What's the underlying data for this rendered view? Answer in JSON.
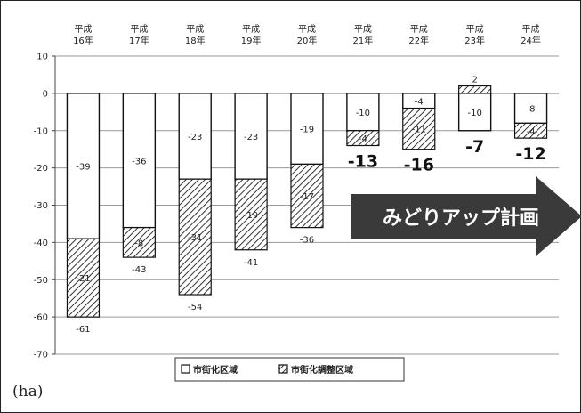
{
  "chart_data": {
    "type": "bar",
    "stacked": true,
    "categories": [
      [
        "平成",
        "16年"
      ],
      [
        "平成",
        "17年"
      ],
      [
        "平成",
        "18年"
      ],
      [
        "平成",
        "19年"
      ],
      [
        "平成",
        "20年"
      ],
      [
        "平成",
        "21年"
      ],
      [
        "平成",
        "22年"
      ],
      [
        "平成",
        "23年"
      ],
      [
        "平成",
        "24年"
      ]
    ],
    "ylim": [
      -70,
      10
    ],
    "yticks": [
      10,
      0,
      -10,
      -20,
      -30,
      -40,
      -50,
      -60,
      -70
    ],
    "grid": true,
    "legend": "bottom-center",
    "unit_label": "(ha)",
    "series": [
      {
        "name": "市街化区域",
        "pattern": "white",
        "values": [
          -39,
          -36,
          -23,
          -23,
          -19,
          -10,
          -4,
          -10,
          -8
        ],
        "labels": [
          "-39",
          "-36",
          "-23",
          "-23",
          "-19",
          "-10",
          "-4",
          "-10",
          "-8"
        ]
      },
      {
        "name": "市街化調整区域",
        "pattern": "hatch",
        "values": [
          -21,
          -8,
          -31,
          -19,
          -17,
          -4,
          -11,
          2,
          -4
        ],
        "labels": [
          "-21",
          "-8",
          "-31",
          "-19",
          "-17",
          "-4",
          "-11",
          "2",
          "-4"
        ]
      }
    ],
    "totals": [
      "-61",
      "-43",
      "-54",
      "-41",
      "-36",
      "-13",
      "-16",
      "-7",
      "-12"
    ],
    "total_emphasis": [
      false,
      false,
      false,
      false,
      false,
      true,
      true,
      true,
      true
    ],
    "annotation": {
      "text": "みどりアップ計画",
      "color": "#3a3a3a",
      "text_color": "#ffffff"
    }
  }
}
